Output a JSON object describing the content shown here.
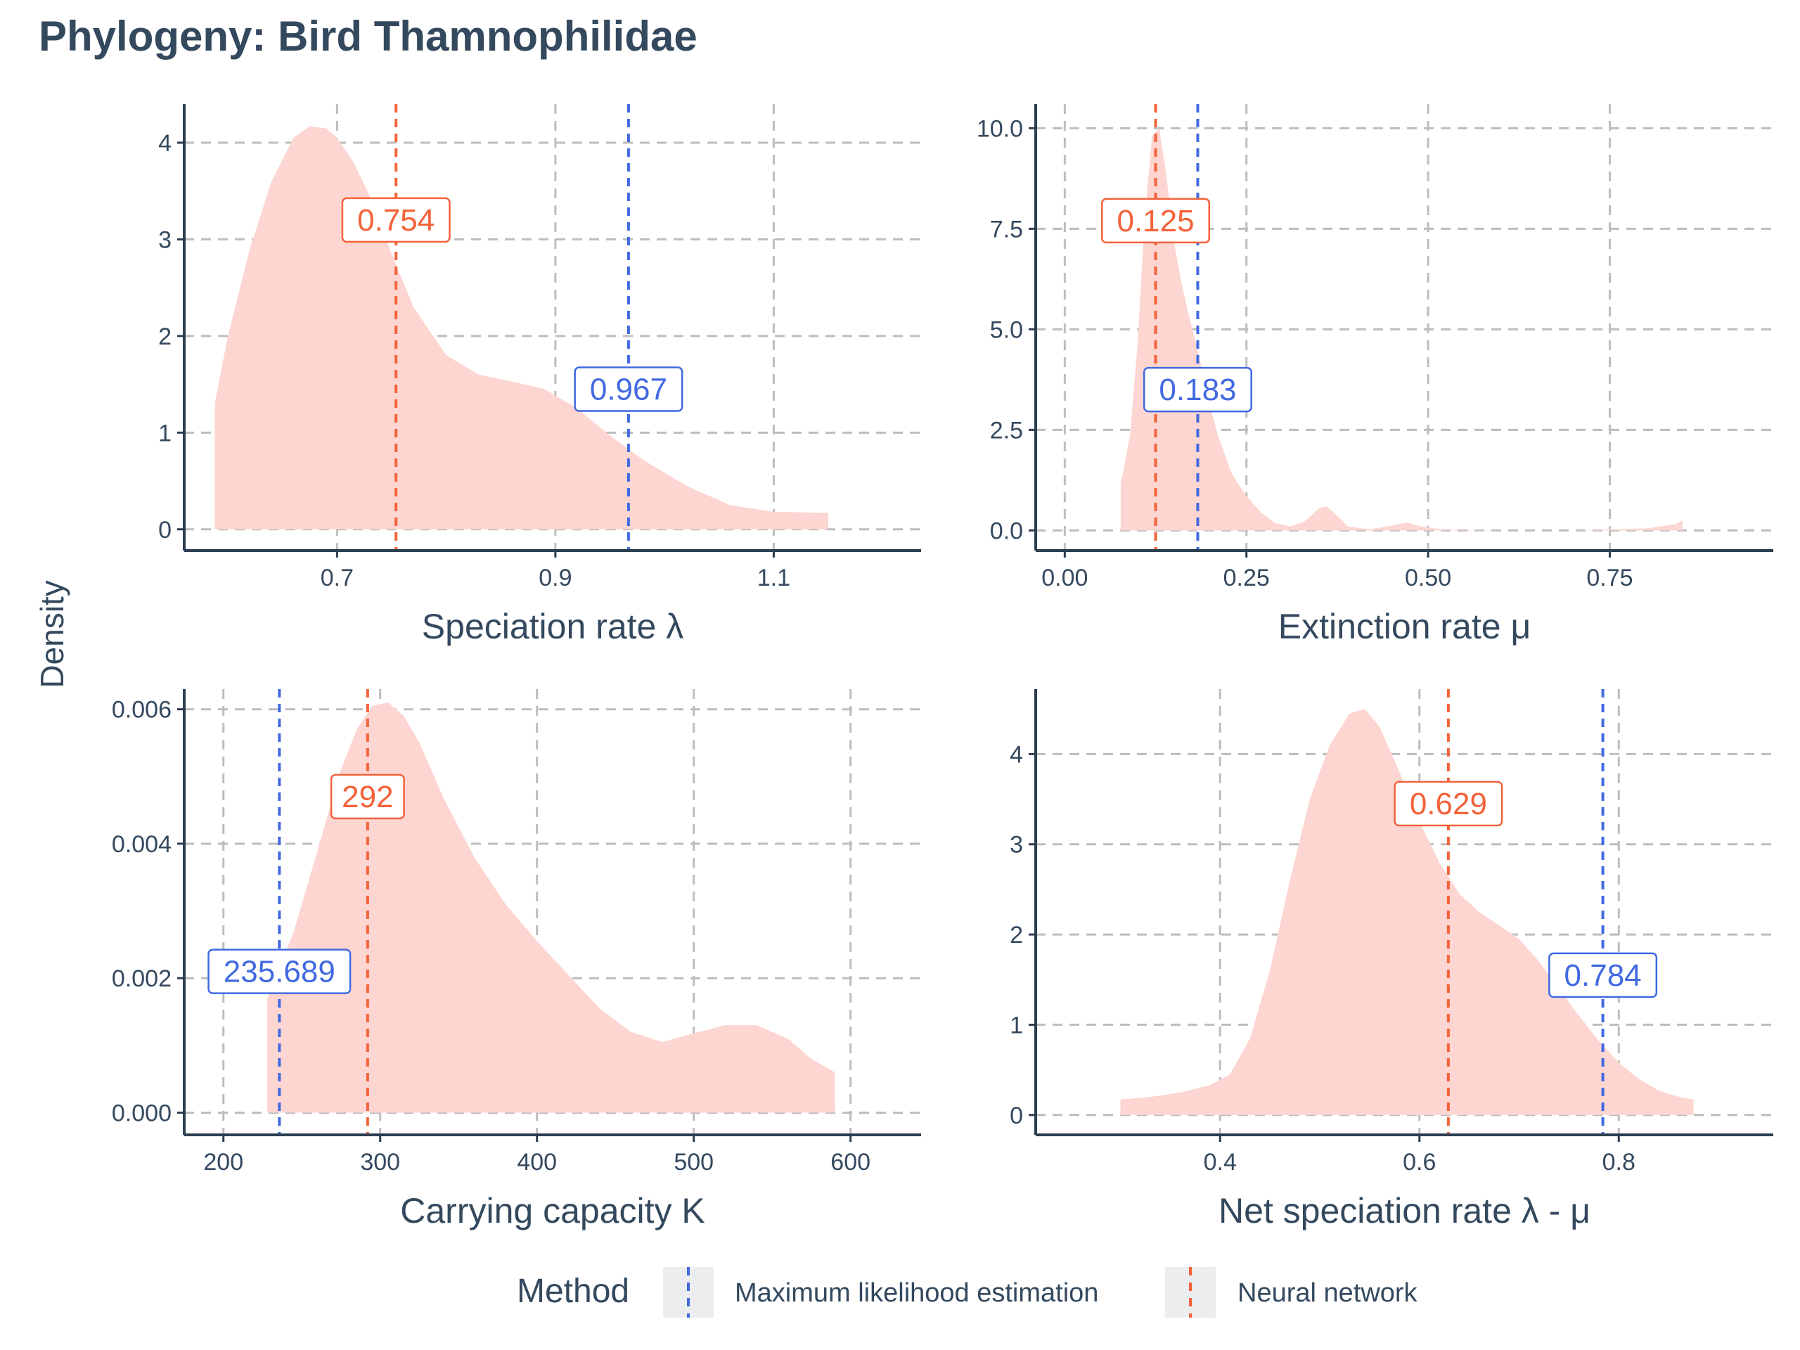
{
  "title": "Phylogeny: Bird Thamnophilidae",
  "y_axis_label": "Density",
  "legend": {
    "title": "Method",
    "items": [
      {
        "label": "Maximum likelihood estimation",
        "color": "#4169e1"
      },
      {
        "label": "Neural network",
        "color": "#f4623a"
      }
    ]
  },
  "colors": {
    "density_fill": "#fdd5d1",
    "mle": "#4169e1",
    "nn": "#f4623a",
    "grid": "#bdbdbd",
    "axis": "#2c3e50",
    "text": "#34495e"
  },
  "chart_data": [
    {
      "type": "area",
      "xlabel": "Speciation rate λ",
      "ylabel": "Density",
      "xlim": [
        0.56,
        1.235
      ],
      "ylim": [
        -0.22,
        4.4
      ],
      "x_ticks": [
        0.7,
        0.9,
        1.1
      ],
      "x_tick_labels": [
        "0.7",
        "0.9",
        "1.1"
      ],
      "y_ticks": [
        0,
        1,
        2,
        3,
        4
      ],
      "y_tick_labels": [
        "0",
        "1",
        "2",
        "3",
        "4"
      ],
      "density": {
        "x": [
          0.588,
          0.6,
          0.62,
          0.64,
          0.66,
          0.675,
          0.69,
          0.7,
          0.715,
          0.73,
          0.75,
          0.77,
          0.8,
          0.83,
          0.86,
          0.89,
          0.92,
          0.95,
          0.98,
          1.02,
          1.06,
          1.1,
          1.15
        ],
        "y": [
          1.3,
          2.0,
          2.9,
          3.6,
          4.05,
          4.17,
          4.15,
          4.05,
          3.8,
          3.45,
          2.85,
          2.3,
          1.8,
          1.6,
          1.53,
          1.45,
          1.25,
          0.97,
          0.72,
          0.45,
          0.25,
          0.18,
          0.17
        ]
      },
      "mle_value": 0.967,
      "nn_value": 0.754,
      "mle_label": "0.967",
      "nn_label": "0.754",
      "mle_label_y": 1.45,
      "nn_label_y": 3.2
    },
    {
      "type": "area",
      "xlabel": "Extinction rate μ",
      "ylabel": "Density",
      "xlim": [
        -0.04,
        0.975
      ],
      "ylim": [
        -0.5,
        10.6
      ],
      "x_ticks": [
        0.0,
        0.25,
        0.5,
        0.75
      ],
      "x_tick_labels": [
        "0.00",
        "0.25",
        "0.50",
        "0.75"
      ],
      "y_ticks": [
        0.0,
        2.5,
        5.0,
        7.5,
        10.0
      ],
      "y_tick_labels": [
        "0.0",
        "2.5",
        "5.0",
        "7.5",
        "10.0"
      ],
      "density": {
        "x": [
          0.077,
          0.08,
          0.09,
          0.1,
          0.11,
          0.12,
          0.13,
          0.14,
          0.15,
          0.16,
          0.17,
          0.18,
          0.19,
          0.2,
          0.21,
          0.22,
          0.23,
          0.25,
          0.27,
          0.29,
          0.31,
          0.33,
          0.35,
          0.36,
          0.37,
          0.39,
          0.42,
          0.45,
          0.47,
          0.49,
          0.52,
          0.6,
          0.7,
          0.8,
          0.84,
          0.85
        ],
        "y": [
          1.2,
          1.4,
          2.4,
          4.6,
          7.7,
          9.8,
          10.0,
          8.8,
          7.2,
          6.2,
          5.4,
          4.7,
          3.9,
          3.1,
          2.4,
          1.9,
          1.4,
          0.85,
          0.45,
          0.18,
          0.1,
          0.22,
          0.55,
          0.6,
          0.45,
          0.1,
          0.03,
          0.12,
          0.2,
          0.1,
          0.02,
          0.0,
          0.0,
          0.05,
          0.15,
          0.25
        ]
      },
      "mle_value": 0.183,
      "nn_value": 0.125,
      "mle_label": "0.183",
      "nn_label": "0.125",
      "mle_label_y": 3.5,
      "nn_label_y": 7.7
    },
    {
      "type": "area",
      "xlabel": "Carrying capacity K",
      "ylabel": "Density",
      "xlim": [
        175,
        645
      ],
      "ylim": [
        -0.00033,
        0.0063
      ],
      "x_ticks": [
        200,
        300,
        400,
        500,
        600
      ],
      "x_tick_labels": [
        "200",
        "300",
        "400",
        "500",
        "600"
      ],
      "y_ticks": [
        0.0,
        0.002,
        0.004,
        0.006
      ],
      "y_tick_labels": [
        "0.000",
        "0.002",
        "0.004",
        "0.006"
      ],
      "density": {
        "x": [
          228,
          235,
          245,
          255,
          265,
          275,
          285,
          295,
          305,
          315,
          325,
          340,
          360,
          380,
          400,
          420,
          440,
          460,
          480,
          500,
          520,
          540,
          560,
          575,
          590
        ],
        "y": [
          0.0017,
          0.0021,
          0.0027,
          0.0035,
          0.0043,
          0.0051,
          0.0057,
          0.00605,
          0.0061,
          0.0059,
          0.0055,
          0.0047,
          0.0038,
          0.0031,
          0.00255,
          0.00205,
          0.00155,
          0.0012,
          0.00105,
          0.00118,
          0.0013,
          0.0013,
          0.0011,
          0.0008,
          0.0006
        ]
      },
      "mle_value": 235.689,
      "nn_value": 292,
      "mle_label": "235.689",
      "nn_label": "292",
      "mle_label_y": 0.0021,
      "nn_label_y": 0.0047
    },
    {
      "type": "area",
      "xlabel": "Net speciation rate λ - μ",
      "ylabel": "Density",
      "xlim": [
        0.215,
        0.955
      ],
      "ylim": [
        -0.22,
        4.72
      ],
      "x_ticks": [
        0.4,
        0.6,
        0.8
      ],
      "x_tick_labels": [
        "0.4",
        "0.6",
        "0.8"
      ],
      "y_ticks": [
        0,
        1,
        2,
        3,
        4
      ],
      "y_tick_labels": [
        "0",
        "1",
        "2",
        "3",
        "4"
      ],
      "density": {
        "x": [
          0.3,
          0.33,
          0.36,
          0.39,
          0.41,
          0.43,
          0.45,
          0.47,
          0.49,
          0.51,
          0.53,
          0.545,
          0.56,
          0.58,
          0.6,
          0.62,
          0.64,
          0.66,
          0.68,
          0.7,
          0.72,
          0.74,
          0.76,
          0.78,
          0.8,
          0.82,
          0.84,
          0.86,
          0.875
        ],
        "y": [
          0.17,
          0.2,
          0.25,
          0.33,
          0.45,
          0.85,
          1.6,
          2.6,
          3.5,
          4.1,
          4.45,
          4.5,
          4.3,
          3.8,
          3.25,
          2.8,
          2.45,
          2.25,
          2.1,
          1.95,
          1.7,
          1.4,
          1.1,
          0.82,
          0.58,
          0.4,
          0.27,
          0.2,
          0.17
        ]
      },
      "mle_value": 0.784,
      "nn_value": 0.629,
      "mle_label": "0.784",
      "nn_label": "0.629",
      "mle_label_y": 1.55,
      "nn_label_y": 3.45
    }
  ]
}
